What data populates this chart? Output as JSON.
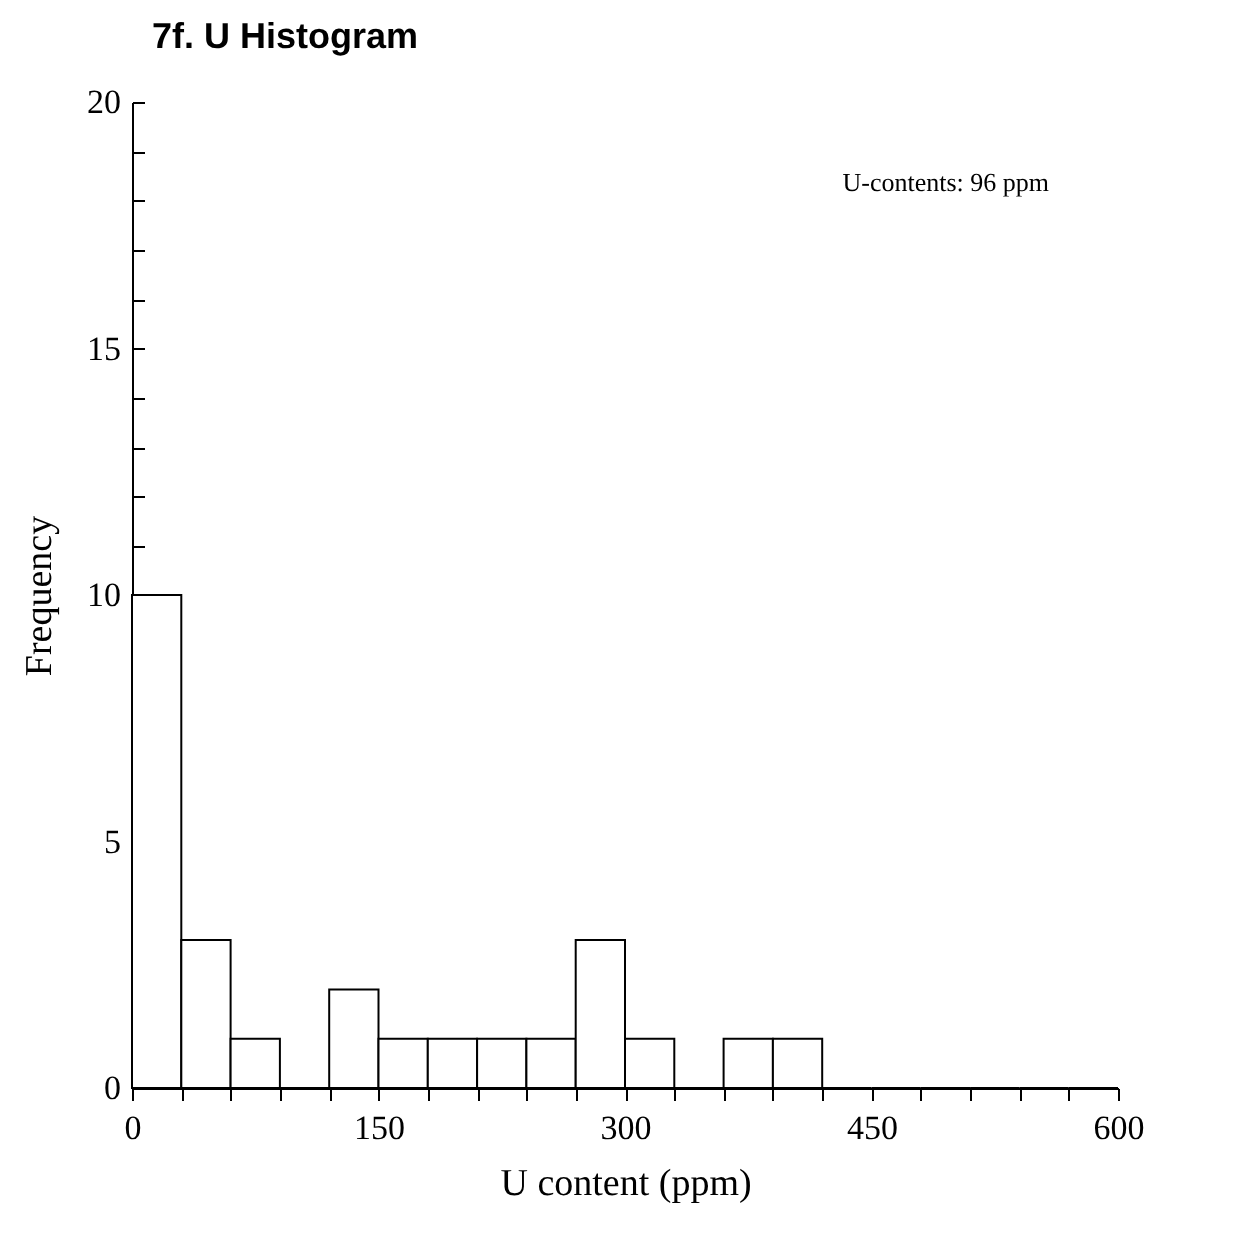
{
  "chart_data": {
    "type": "histogram",
    "title": "7f. U Histogram",
    "xlabel": "U content (ppm)",
    "ylabel": "Frequency",
    "annotations": [
      "U-contents: 96 ppm"
    ],
    "bins": [
      0,
      30,
      60,
      90,
      120,
      150,
      180,
      210,
      240,
      270,
      300,
      330,
      360,
      390,
      420,
      450,
      480,
      510,
      540,
      570,
      600
    ],
    "values": [
      10,
      3,
      1,
      0,
      2,
      1,
      1,
      1,
      1,
      3,
      1,
      0,
      1,
      1,
      0,
      0,
      0,
      0,
      0,
      0
    ],
    "color": "#ffffff",
    "grid": false,
    "xlim": [
      0,
      600
    ],
    "xticks": [
      0,
      {
        "value": 30,
        "label": null
      },
      {
        "value": 60,
        "label": null
      },
      {
        "value": 90,
        "label": null
      },
      {
        "value": 120,
        "label": null
      },
      150,
      {
        "value": 180,
        "label": null
      },
      {
        "value": 210,
        "label": null
      },
      {
        "value": 240,
        "label": null
      },
      {
        "value": 270,
        "label": null
      },
      300,
      {
        "value": 330,
        "label": null
      },
      {
        "value": 360,
        "label": null
      },
      {
        "value": 390,
        "label": null
      },
      {
        "value": 420,
        "label": null
      },
      450,
      {
        "value": 480,
        "label": null
      },
      {
        "value": 510,
        "label": null
      },
      {
        "value": 540,
        "label": null
      },
      {
        "value": 570,
        "label": null
      },
      600
    ],
    "ylim": [
      0,
      20
    ],
    "yticks": [
      0,
      {
        "value": 1,
        "label": null
      },
      {
        "value": 2,
        "label": null
      },
      {
        "value": 3,
        "label": null
      },
      {
        "value": 4,
        "label": null
      },
      5,
      {
        "value": 6,
        "label": null
      },
      {
        "value": 7,
        "label": null
      },
      {
        "value": 8,
        "label": null
      },
      {
        "value": 9,
        "label": null
      },
      10,
      {
        "value": 11,
        "label": null
      },
      {
        "value": 12,
        "label": null
      },
      {
        "value": 13,
        "label": null
      },
      {
        "value": 14,
        "label": null
      },
      15,
      {
        "value": 16,
        "label": null
      },
      {
        "value": 17,
        "label": null
      },
      {
        "value": 18,
        "label": null
      },
      {
        "value": 19,
        "label": null
      },
      20
    ]
  }
}
